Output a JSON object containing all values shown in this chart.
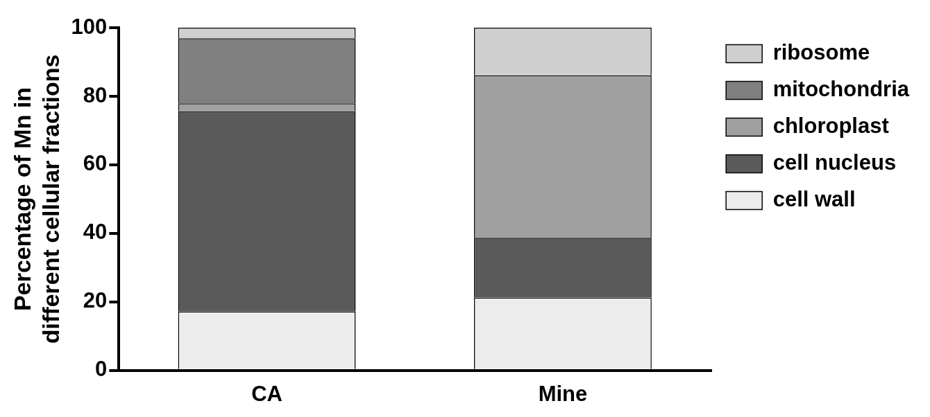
{
  "chart_data": {
    "type": "bar",
    "stacked": true,
    "ylabel": "Percentage of Mn in different cellular fractions",
    "categories": [
      "CA",
      "Mine"
    ],
    "series": [
      {
        "name": "cell wall",
        "color": "#ececec",
        "values": [
          17.2,
          21.3
        ]
      },
      {
        "name": "cell nucleus",
        "color": "#5a5a5a",
        "values": [
          58.4,
          17.4
        ]
      },
      {
        "name": "chloroplast",
        "color": "#a0a0a0",
        "values": [
          2.3,
          47.4
        ]
      },
      {
        "name": "mitochondria",
        "color": "#808080",
        "values": [
          19.0,
          0
        ]
      },
      {
        "name": "ribosome",
        "color": "#cfcfcf",
        "values": [
          3.1,
          13.9
        ]
      }
    ],
    "ylim": [
      0,
      100
    ],
    "yticks": [
      0,
      20,
      40,
      60,
      80,
      100
    ],
    "grid": false,
    "legend": "right"
  }
}
